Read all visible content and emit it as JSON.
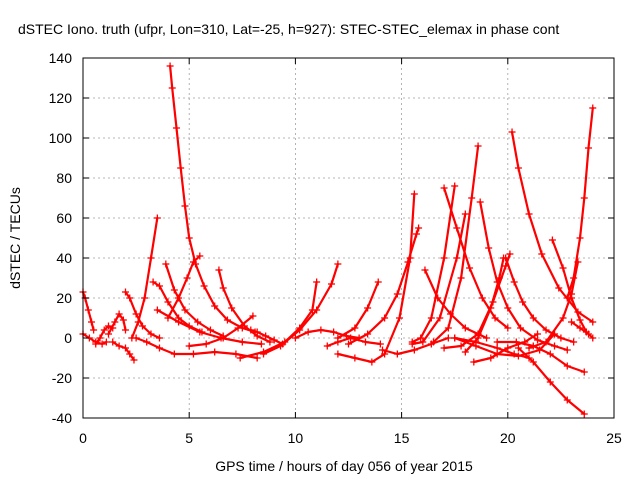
{
  "chart_data": {
    "type": "line",
    "title": "dSTEC Iono. truth (ufpr, Lon=310, Lat=-25, h=927): STEC-STEC_elemax in phase cont",
    "xlabel": "GPS time / hours of day 056 of year 2015",
    "ylabel": "dSTEC  / TECUs",
    "xlim": [
      0,
      25
    ],
    "ylim": [
      -40,
      140
    ],
    "xticks": [
      0,
      5,
      10,
      15,
      20,
      25
    ],
    "yticks": [
      -40,
      -20,
      0,
      20,
      40,
      60,
      80,
      100,
      120,
      140
    ],
    "xtick_labels": [
      "0",
      "5",
      "10",
      "15",
      "20",
      "25"
    ],
    "ytick_labels": [
      "-40",
      "-20",
      "0",
      "20",
      "40",
      "60",
      "80",
      "100",
      "120",
      "140"
    ],
    "grid": true,
    "legend": "none",
    "color": "#ff0000",
    "marker": "plus",
    "series": [
      {
        "x": [
          0.0,
          0.1,
          0.25,
          0.4,
          0.5
        ],
        "y": [
          23,
          20,
          14,
          8,
          4
        ]
      },
      {
        "x": [
          0.0,
          0.3,
          0.6,
          0.9,
          1.1
        ],
        "y": [
          2,
          0,
          -2,
          -3,
          -2
        ]
      },
      {
        "x": [
          0.6,
          0.8,
          1.0,
          1.2,
          1.4
        ],
        "y": [
          -3,
          0,
          4,
          6,
          5
        ]
      },
      {
        "x": [
          1.2,
          1.5,
          1.7,
          1.9,
          2.0
        ],
        "y": [
          2,
          8,
          12,
          9,
          4
        ]
      },
      {
        "x": [
          1.4,
          1.7,
          2.0,
          2.2,
          2.4
        ],
        "y": [
          -2,
          -4,
          -5,
          -8,
          -11
        ]
      },
      {
        "x": [
          2.0,
          2.2,
          2.5,
          2.8,
          3.2,
          3.6
        ],
        "y": [
          23,
          20,
          12,
          6,
          2,
          0
        ]
      },
      {
        "x": [
          2.3,
          2.6,
          2.9,
          3.2,
          3.5
        ],
        "y": [
          0,
          8,
          20,
          40,
          60
        ]
      },
      {
        "x": [
          3.3,
          3.6,
          4.0,
          4.5,
          5.0,
          5.6
        ],
        "y": [
          28,
          26,
          18,
          10,
          6,
          3
        ]
      },
      {
        "x": [
          4.1,
          4.2,
          4.4,
          4.6,
          4.8,
          5.0,
          5.3,
          5.7,
          6.2,
          6.8,
          7.5,
          8.1
        ],
        "y": [
          136,
          125,
          105,
          85,
          66,
          50,
          37,
          26,
          16,
          9,
          5,
          3
        ]
      },
      {
        "x": [
          3.9,
          4.3,
          4.8,
          5.4,
          6.0,
          6.6
        ],
        "y": [
          37,
          24,
          14,
          8,
          4,
          1
        ]
      },
      {
        "x": [
          2.5,
          3.0,
          3.6,
          4.3,
          5.2,
          6.2,
          7.2,
          8.2
        ],
        "y": [
          0,
          -2,
          -5,
          -8,
          -8,
          -7,
          -8,
          -10
        ]
      },
      {
        "x": [
          4.0,
          4.5,
          4.9,
          5.2,
          5.5
        ],
        "y": [
          10,
          20,
          30,
          38,
          41
        ]
      },
      {
        "x": [
          3.5,
          4.5,
          5.5,
          6.5,
          7.5,
          8.4
        ],
        "y": [
          14,
          8,
          3,
          0,
          -2,
          -3
        ]
      },
      {
        "x": [
          6.4,
          6.6,
          7.0,
          7.6,
          8.2,
          8.8
        ],
        "y": [
          34,
          25,
          15,
          6,
          1,
          -2
        ]
      },
      {
        "x": [
          5.0,
          5.8,
          6.6,
          7.3,
          8.0
        ],
        "y": [
          -4,
          -3,
          0,
          5,
          11
        ]
      },
      {
        "x": [
          7.9,
          8.2,
          8.6,
          9.0,
          9.4
        ],
        "y": [
          4,
          3,
          1,
          -1,
          -3
        ]
      },
      {
        "x": [
          7.4,
          8.5,
          9.5,
          10.2,
          10.8,
          11.0
        ],
        "y": [
          -10,
          -7,
          -2,
          5,
          14,
          28
        ]
      },
      {
        "x": [
          8.5,
          9.3,
          10.2,
          11.0,
          11.7,
          12.0
        ],
        "y": [
          -8,
          -4,
          4,
          14,
          27,
          37
        ]
      },
      {
        "x": [
          10.0,
          10.6,
          11.2,
          11.8,
          12.4,
          13.0
        ],
        "y": [
          0,
          3,
          4,
          3,
          1,
          0
        ]
      },
      {
        "x": [
          11.5,
          12.0,
          12.6,
          13.3,
          14.0
        ],
        "y": [
          -4,
          -2,
          0,
          -2,
          -3
        ]
      },
      {
        "x": [
          12.0,
          12.8,
          13.6,
          14.2,
          14.9,
          15.4,
          15.6
        ],
        "y": [
          -8,
          -10,
          -12,
          -8,
          10,
          40,
          72
        ]
      },
      {
        "x": [
          12.0,
          12.8,
          13.4,
          13.9
        ],
        "y": [
          0,
          5,
          15,
          28
        ]
      },
      {
        "x": [
          12.5,
          13.4,
          14.2,
          14.8,
          15.3,
          15.7,
          15.8
        ],
        "y": [
          -3,
          2,
          10,
          22,
          38,
          52,
          55
        ]
      },
      {
        "x": [
          14.1,
          14.8,
          15.6,
          16.4,
          17.2
        ],
        "y": [
          -6,
          -8,
          -6,
          -3,
          0
        ]
      },
      {
        "x": [
          15.5,
          15.9,
          16.4,
          17.0,
          17.5
        ],
        "y": [
          -2,
          0,
          10,
          40,
          76
        ]
      },
      {
        "x": [
          16.1,
          16.7,
          17.3,
          18.0,
          18.6,
          19.0
        ],
        "y": [
          34,
          20,
          12,
          5,
          2,
          0
        ]
      },
      {
        "x": [
          15.5,
          16.0,
          16.8,
          17.6,
          18.0
        ],
        "y": [
          -3,
          -2,
          10,
          40,
          62
        ]
      },
      {
        "x": [
          17.0,
          17.6,
          18.2,
          18.8,
          19.4,
          20.0
        ],
        "y": [
          75,
          55,
          35,
          20,
          10,
          5
        ]
      },
      {
        "x": [
          16.5,
          17.2,
          17.8,
          18.3,
          18.6
        ],
        "y": [
          -2,
          5,
          30,
          70,
          96
        ]
      },
      {
        "x": [
          17.5,
          18.5,
          19.5,
          20.5,
          21.5,
          22.2
        ],
        "y": [
          0,
          -4,
          -8,
          -9,
          -6,
          2
        ]
      },
      {
        "x": [
          18.7,
          19.1,
          19.5,
          20.0,
          20.6,
          21.4,
          22.2,
          22.8
        ],
        "y": [
          68,
          45,
          28,
          15,
          5,
          -1,
          -4,
          -6
        ]
      },
      {
        "x": [
          17.0,
          17.8,
          18.6,
          19.3,
          19.9,
          20.1
        ],
        "y": [
          -5,
          -4,
          2,
          18,
          36,
          42
        ]
      },
      {
        "x": [
          18.0,
          18.6,
          19.2,
          19.6,
          19.8
        ],
        "y": [
          -7,
          0,
          15,
          30,
          40
        ]
      },
      {
        "x": [
          19.9,
          20.3,
          20.7,
          21.2,
          21.8,
          22.5,
          23.1
        ],
        "y": [
          40,
          28,
          18,
          10,
          4,
          0,
          -2
        ]
      },
      {
        "x": [
          20.2,
          20.5,
          21.0,
          21.6,
          22.4,
          23.3,
          24.0
        ],
        "y": [
          103,
          85,
          62,
          42,
          25,
          13,
          8
        ]
      },
      {
        "x": [
          18.4,
          19.2,
          20.0,
          20.8,
          21.4
        ],
        "y": [
          -12,
          -10,
          -5,
          -2,
          2
        ]
      },
      {
        "x": [
          19.5,
          20.4,
          21.2,
          22.0,
          22.8,
          23.6
        ],
        "y": [
          -2,
          -2,
          -4,
          -8,
          -14,
          -17
        ]
      },
      {
        "x": [
          22.1,
          22.6,
          23.0,
          23.4,
          23.7
        ],
        "y": [
          49,
          35,
          20,
          9,
          3
        ]
      },
      {
        "x": [
          21.0,
          21.8,
          22.6,
          23.0,
          23.3
        ],
        "y": [
          -5,
          -2,
          10,
          22,
          38
        ]
      },
      {
        "x": [
          22.8,
          23.1,
          23.4,
          23.6,
          23.8,
          24.0
        ],
        "y": [
          20,
          30,
          50,
          70,
          95,
          115
        ]
      },
      {
        "x": [
          23.0,
          23.4,
          23.8,
          24.0
        ],
        "y": [
          8,
          5,
          2,
          0
        ]
      },
      {
        "x": [
          17.5,
          18.5,
          19.5,
          20.3,
          21.0
        ],
        "y": [
          0,
          -2,
          -5,
          -8,
          -10
        ]
      },
      {
        "x": [
          20.5,
          21.2,
          22.0,
          22.8,
          23.6
        ],
        "y": [
          -5,
          -12,
          -22,
          -31,
          -38
        ]
      }
    ]
  }
}
